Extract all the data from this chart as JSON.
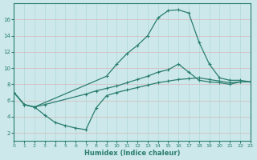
{
  "xlabel": "Humidex (Indice chaleur)",
  "bg_color": "#cce8ea",
  "grid_color": "#b0d8dc",
  "line_color": "#2a7d6f",
  "x_min": 0,
  "x_max": 23,
  "y_min": 1,
  "y_max": 18,
  "line_top_x": [
    0,
    1,
    2,
    9,
    10,
    11,
    12,
    13,
    14,
    15,
    16,
    17,
    18,
    19,
    20,
    21,
    22,
    23
  ],
  "line_top_y": [
    7.0,
    5.5,
    5.2,
    9.0,
    10.5,
    11.8,
    12.8,
    14.0,
    16.2,
    17.1,
    17.2,
    16.8,
    13.2,
    10.5,
    8.8,
    8.5,
    8.5,
    8.3
  ],
  "line_mid_x": [
    0,
    1,
    2,
    3,
    7,
    8,
    9,
    10,
    11,
    12,
    13,
    14,
    15,
    16,
    17,
    18,
    19,
    20,
    21,
    22,
    23
  ],
  "line_mid_y": [
    7.0,
    5.5,
    5.2,
    5.5,
    6.8,
    7.2,
    7.5,
    7.8,
    8.2,
    8.6,
    9.0,
    9.5,
    9.8,
    10.5,
    9.5,
    8.5,
    8.3,
    8.2,
    8.0,
    8.3,
    8.3
  ],
  "line_bot_x": [
    0,
    1,
    2,
    3,
    4,
    5,
    6,
    7,
    8,
    9,
    10,
    11,
    12,
    13,
    14,
    15,
    16,
    17,
    18,
    19,
    20,
    21,
    22,
    23
  ],
  "line_bot_y": [
    7.0,
    5.5,
    5.2,
    4.2,
    3.3,
    2.9,
    2.6,
    2.4,
    5.1,
    6.6,
    7.0,
    7.3,
    7.6,
    7.9,
    8.2,
    8.4,
    8.6,
    8.7,
    8.8,
    8.6,
    8.4,
    8.2,
    8.3,
    8.3
  ],
  "yticks": [
    2,
    4,
    6,
    8,
    10,
    12,
    14,
    16
  ],
  "xticks": [
    0,
    1,
    2,
    3,
    4,
    5,
    6,
    7,
    8,
    9,
    10,
    11,
    12,
    13,
    14,
    15,
    16,
    17,
    18,
    19,
    20,
    21,
    22,
    23
  ]
}
